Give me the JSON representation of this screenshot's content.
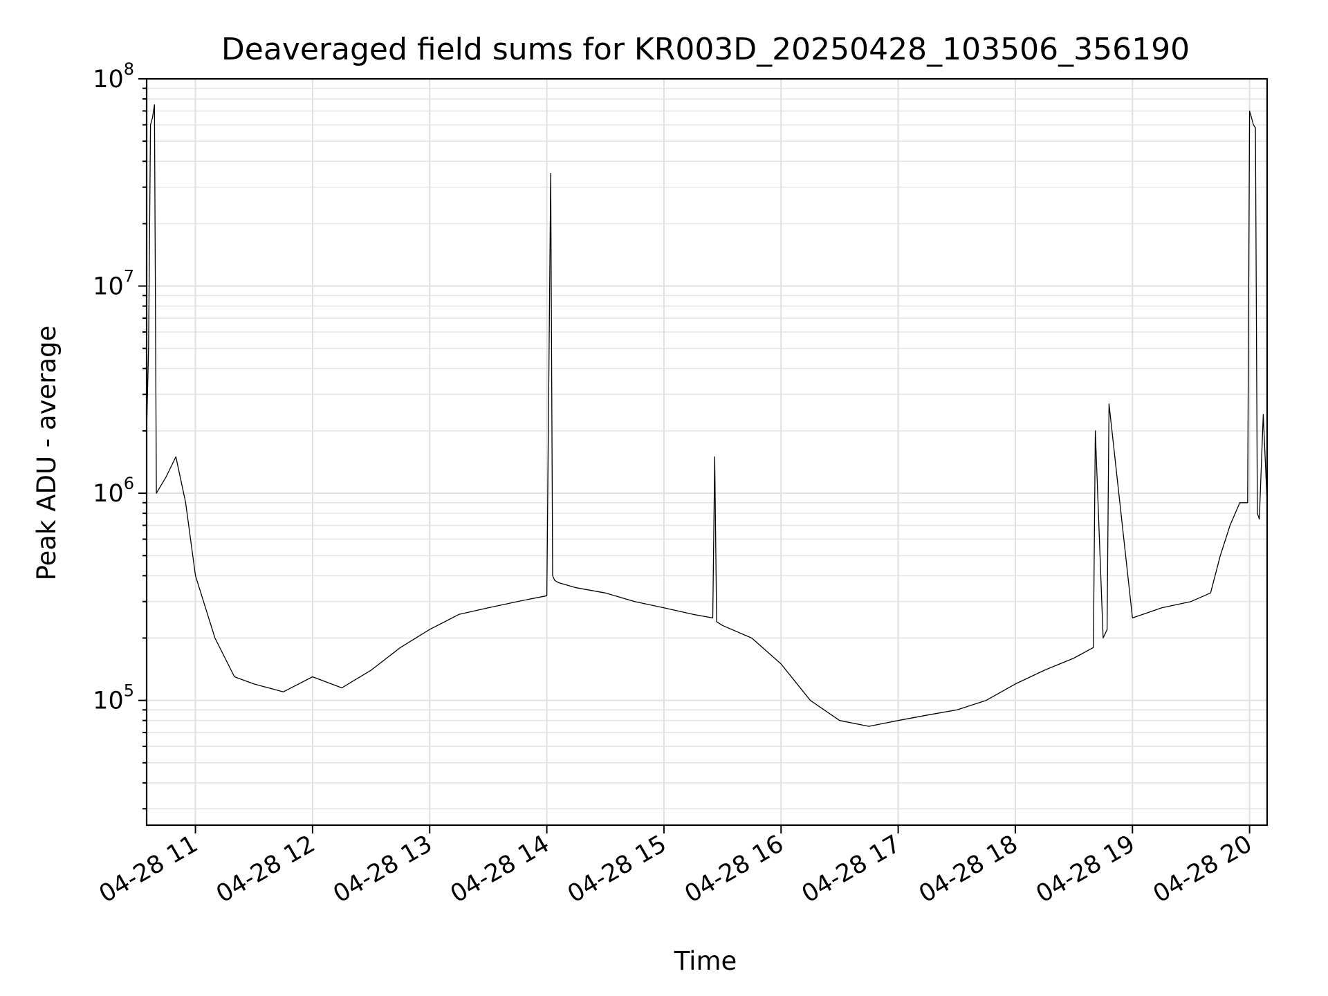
{
  "chart_data": {
    "type": "line",
    "title": "Deaveraged field sums for KR003D_20250428_103506_356190",
    "xlabel": "Time",
    "ylabel": "Peak ADU - average",
    "yscale": "log",
    "ylim": [
      25000,
      100000000
    ],
    "xlim": [
      "04-28 10:35",
      "04-28 20:09"
    ],
    "grid": true,
    "xticks": [
      {
        "t": "04-28 11:00",
        "label": "04-28 11"
      },
      {
        "t": "04-28 12:00",
        "label": "04-28 12"
      },
      {
        "t": "04-28 13:00",
        "label": "04-28 13"
      },
      {
        "t": "04-28 14:00",
        "label": "04-28 14"
      },
      {
        "t": "04-28 15:00",
        "label": "04-28 15"
      },
      {
        "t": "04-28 16:00",
        "label": "04-28 16"
      },
      {
        "t": "04-28 17:00",
        "label": "04-28 17"
      },
      {
        "t": "04-28 18:00",
        "label": "04-28 18"
      },
      {
        "t": "04-28 19:00",
        "label": "04-28 19"
      },
      {
        "t": "04-28 20:00",
        "label": "04-28 20"
      }
    ],
    "yticks": [
      {
        "value": 100000,
        "base": "10",
        "exp": "5"
      },
      {
        "value": 1000000,
        "base": "10",
        "exp": "6"
      },
      {
        "value": 10000000,
        "base": "10",
        "exp": "7"
      },
      {
        "value": 100000000,
        "base": "10",
        "exp": "8"
      }
    ],
    "series": [
      {
        "color": "#000000",
        "x": [
          "04-28 10:35",
          "04-28 10:36",
          "04-28 10:37",
          "04-28 10:38",
          "04-28 10:39",
          "04-28 10:40",
          "04-28 10:45",
          "04-28 10:50",
          "04-28 10:55",
          "04-28 11:00",
          "04-28 11:10",
          "04-28 11:20",
          "04-28 11:30",
          "04-28 11:45",
          "04-28 12:00",
          "04-28 12:15",
          "04-28 12:30",
          "04-28 12:45",
          "04-28 13:00",
          "04-28 13:15",
          "04-28 13:30",
          "04-28 13:45",
          "04-28 14:00",
          "04-28 14:02",
          "04-28 14:03",
          "04-28 14:04",
          "04-28 14:06",
          "04-28 14:15",
          "04-28 14:30",
          "04-28 14:45",
          "04-28 15:00",
          "04-28 15:15",
          "04-28 15:25",
          "04-28 15:26",
          "04-28 15:27",
          "04-28 15:30",
          "04-28 15:45",
          "04-28 16:00",
          "04-28 16:15",
          "04-28 16:30",
          "04-28 16:45",
          "04-28 17:00",
          "04-28 17:15",
          "04-28 17:30",
          "04-28 17:45",
          "04-28 18:00",
          "04-28 18:15",
          "04-28 18:30",
          "04-28 18:40",
          "04-28 18:41",
          "04-28 18:45",
          "04-28 18:47",
          "04-28 18:48",
          "04-28 19:00",
          "04-28 19:15",
          "04-28 19:30",
          "04-28 19:40",
          "04-28 19:45",
          "04-28 19:50",
          "04-28 19:55",
          "04-28 19:59",
          "04-28 20:00",
          "04-28 20:01",
          "04-28 20:02",
          "04-28 20:03",
          "04-28 20:04",
          "04-28 20:05",
          "04-28 20:07",
          "04-28 20:09"
        ],
        "values": [
          2000000,
          5000000,
          60000000,
          65000000,
          75000000,
          1000000,
          1200000,
          1500000,
          900000,
          400000,
          200000,
          130000,
          120000,
          110000,
          130000,
          115000,
          140000,
          180000,
          220000,
          260000,
          280000,
          300000,
          320000,
          35000000,
          400000,
          380000,
          370000,
          350000,
          330000,
          300000,
          280000,
          260000,
          250000,
          1500000,
          240000,
          230000,
          200000,
          150000,
          100000,
          80000,
          75000,
          80000,
          85000,
          90000,
          100000,
          120000,
          140000,
          160000,
          180000,
          2000000,
          200000,
          220000,
          2700000,
          250000,
          280000,
          300000,
          330000,
          500000,
          700000,
          900000,
          900000,
          70000000,
          65000000,
          60000000,
          58000000,
          800000,
          750000,
          2400000,
          900000
        ]
      }
    ]
  }
}
